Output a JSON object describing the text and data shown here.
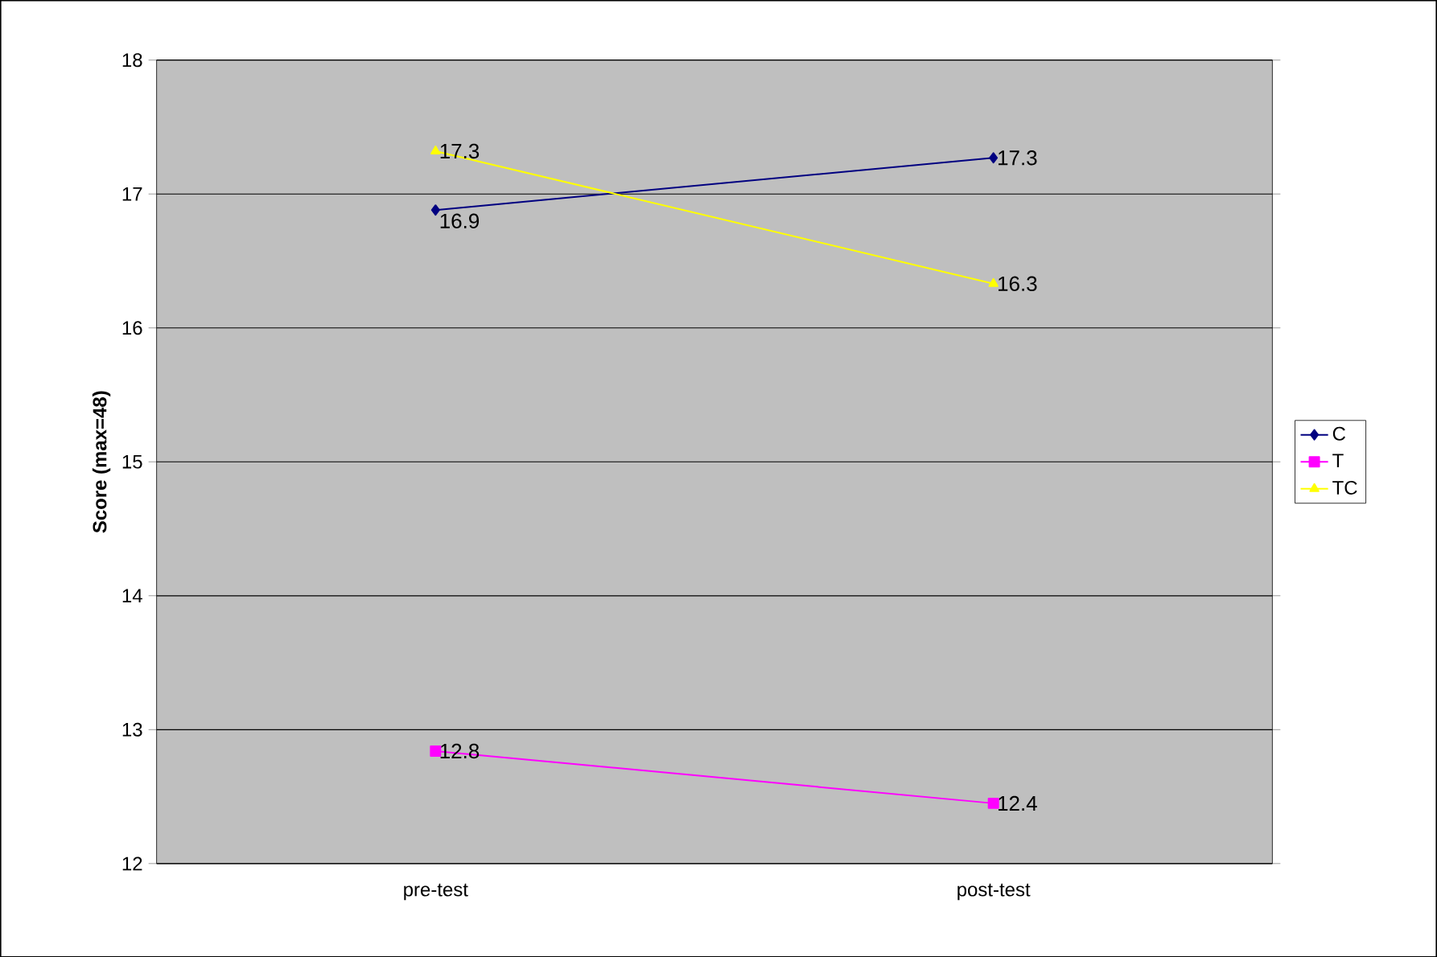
{
  "chart_data": {
    "type": "line",
    "ylabel": "Score (max=48)",
    "categories": [
      "pre-test",
      "post-test"
    ],
    "series": [
      {
        "name": "C",
        "color": "#000080",
        "marker": "diamond",
        "values": [
          16.88,
          17.27
        ],
        "value_labels": [
          "16.9",
          "17.3"
        ]
      },
      {
        "name": "T",
        "color": "#ff00ff",
        "marker": "square",
        "values": [
          12.84,
          12.45
        ],
        "value_labels": [
          "12.8",
          "12.4"
        ]
      },
      {
        "name": "TC",
        "color": "#ffff00",
        "marker": "triangle",
        "values": [
          17.32,
          16.33
        ],
        "value_labels": [
          "17.3",
          "16.3"
        ]
      }
    ],
    "ylim": [
      12,
      18
    ],
    "yticks": [
      12,
      13,
      14,
      15,
      16,
      17,
      18
    ],
    "grid": "y",
    "legend": "right"
  }
}
